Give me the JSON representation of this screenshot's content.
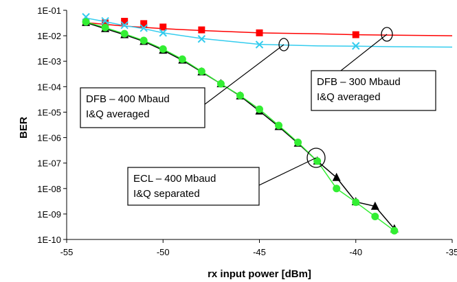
{
  "chart_data": {
    "type": "scatter",
    "xlabel": "rx input power [dBm]",
    "ylabel": "BER",
    "xlim": [
      -55,
      -35
    ],
    "ylim_exponent": [
      -10,
      -1
    ],
    "y_scale": "log",
    "grid": false,
    "x_ticks": [
      "-55",
      "-50",
      "-45",
      "-40",
      "-35"
    ],
    "y_ticks": [
      "1E-01",
      "1E-02",
      "1E-03",
      "1E-04",
      "1E-05",
      "1E-06",
      "1E-07",
      "1E-08",
      "1E-09",
      "1E-10"
    ],
    "series": [
      {
        "id": "dfb300",
        "color": "#ff0000",
        "marker": "square",
        "line": "fit",
        "points": [
          [
            -54,
            0.034
          ],
          [
            -53,
            0.032
          ],
          [
            -52,
            0.037
          ],
          [
            -51,
            0.03
          ],
          [
            -50,
            0.022
          ],
          [
            -48,
            0.017
          ],
          [
            -45,
            0.013
          ],
          [
            -40,
            0.011
          ]
        ],
        "curve": [
          [
            -54,
            0.033
          ],
          [
            -53,
            0.028
          ],
          [
            -52,
            0.024
          ],
          [
            -50,
            0.019
          ],
          [
            -48,
            0.016
          ],
          [
            -45,
            0.013
          ],
          [
            -42,
            0.012
          ],
          [
            -40,
            0.011
          ],
          [
            -38,
            0.0105
          ],
          [
            -35,
            0.01
          ]
        ]
      },
      {
        "id": "dfb400",
        "color": "#33ccee",
        "marker": "x",
        "line": "fit",
        "points": [
          [
            -54,
            0.055
          ],
          [
            -53,
            0.038
          ],
          [
            -52,
            0.026
          ],
          [
            -51,
            0.02
          ],
          [
            -50,
            0.013
          ],
          [
            -48,
            0.0075
          ],
          [
            -45,
            0.0045
          ],
          [
            -40,
            0.004
          ]
        ],
        "curve": [
          [
            -54,
            0.05
          ],
          [
            -53,
            0.036
          ],
          [
            -52,
            0.025
          ],
          [
            -51,
            0.019
          ],
          [
            -50,
            0.013
          ],
          [
            -48,
            0.0078
          ],
          [
            -46,
            0.0055
          ],
          [
            -45,
            0.0046
          ],
          [
            -42,
            0.004
          ],
          [
            -40,
            0.0039
          ],
          [
            -38,
            0.0037
          ],
          [
            -35,
            0.0036
          ]
        ]
      },
      {
        "id": "ecl400-triangle",
        "color": "#000000",
        "marker": "triangle",
        "line": "connect",
        "points": [
          [
            -54,
            0.033
          ],
          [
            -53,
            0.019
          ],
          [
            -52,
            0.011
          ],
          [
            -51,
            0.006
          ],
          [
            -50,
            0.0027
          ],
          [
            -49,
            0.0011
          ],
          [
            -48,
            0.00038
          ],
          [
            -47,
            0.00013
          ],
          [
            -46,
            4.3e-05
          ],
          [
            -45,
            1.1e-05
          ],
          [
            -44,
            2.7e-06
          ],
          [
            -43,
            6e-07
          ],
          [
            -42,
            1.2e-07
          ],
          [
            -41,
            2.7e-08
          ],
          [
            -40,
            3e-09
          ],
          [
            -39,
            2e-09
          ],
          [
            -38,
            2.6e-10
          ]
        ]
      },
      {
        "id": "ecl400-circle",
        "color": "#33ee33",
        "marker": "circle",
        "line": "connect",
        "points": [
          [
            -54,
            0.035
          ],
          [
            -53,
            0.021
          ],
          [
            -52,
            0.012
          ],
          [
            -51,
            0.0065
          ],
          [
            -50,
            0.003
          ],
          [
            -49,
            0.0012
          ],
          [
            -48,
            0.0004
          ],
          [
            -47,
            0.00013
          ],
          [
            -46,
            4.5e-05
          ],
          [
            -45,
            1.3e-05
          ],
          [
            -44,
            3e-06
          ],
          [
            -43,
            6.5e-07
          ],
          [
            -42,
            1.2e-07
          ],
          [
            -41,
            1e-08
          ],
          [
            -40,
            2.9e-09
          ],
          [
            -39,
            8e-10
          ],
          [
            -38,
            2.2e-10
          ]
        ]
      }
    ],
    "annotations": [
      {
        "id": "dfb400-label",
        "lines": [
          "DFB – 400 Mbaud",
          "I&Q averaged"
        ],
        "target": [
          -43.6,
          0.0045
        ]
      },
      {
        "id": "dfb300-label",
        "lines": [
          "DFB – 300 Mbaud",
          "I&Q averaged"
        ],
        "target": [
          -39.4,
          0.011
        ]
      },
      {
        "id": "ecl-label",
        "lines": [
          "ECL – 400 Mbaud",
          "I&Q separated"
        ],
        "target": [
          -41.8,
          1.2e-07
        ]
      }
    ]
  }
}
